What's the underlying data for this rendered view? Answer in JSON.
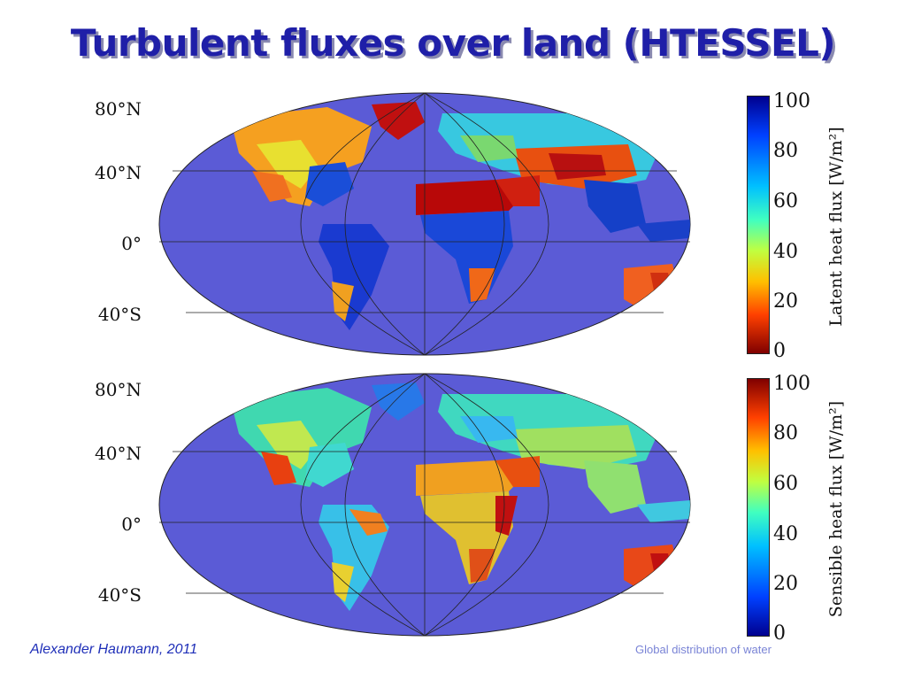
{
  "slide": {
    "title": "Turbulent fluxes over land (HTESSEL)",
    "author_credit": "Alexander Haumann, 2011",
    "topic_footer": "Global distribution of water"
  },
  "maps": [
    {
      "id": "latent",
      "lat_labels": [
        "80°N",
        "40°N",
        "0°",
        "40°S"
      ],
      "colorbar": {
        "label": "Latent heat flux [W/m²]",
        "ticks": [
          "100",
          "80",
          "60",
          "40",
          "20",
          "0"
        ],
        "colormap": "jet_reversed"
      }
    },
    {
      "id": "sensible",
      "lat_labels": [
        "80°N",
        "40°N",
        "0°",
        "40°S"
      ],
      "colorbar": {
        "label": "Sensible heat flux [W/m²]",
        "ticks": [
          "100",
          "80",
          "60",
          "40",
          "20",
          "0"
        ],
        "colormap": "jet"
      }
    }
  ],
  "colors": {
    "ocean": "#5b5bd6",
    "title": "#1f1fa8",
    "author": "#1f2fb8",
    "footer": "#7a84d6"
  }
}
